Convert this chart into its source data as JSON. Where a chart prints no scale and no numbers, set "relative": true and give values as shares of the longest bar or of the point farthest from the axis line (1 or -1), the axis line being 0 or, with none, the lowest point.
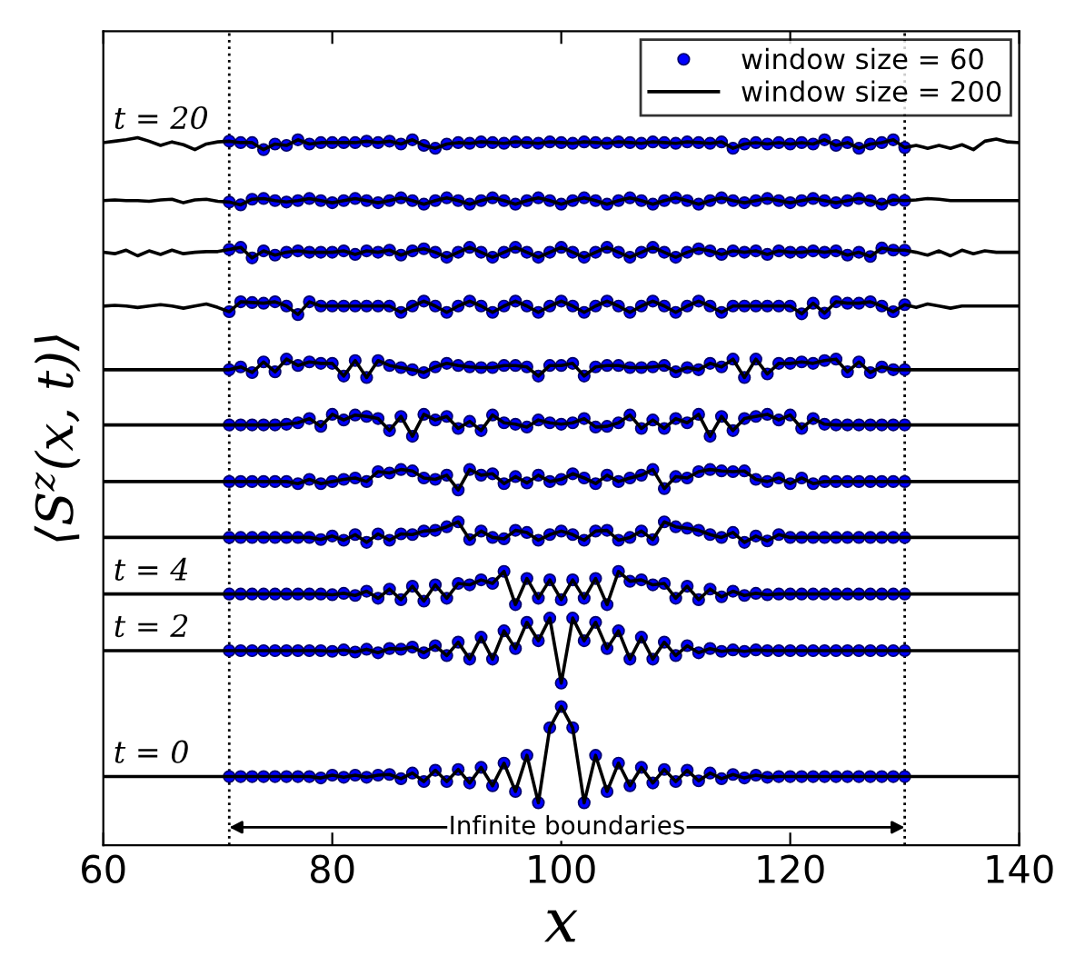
{
  "chart_data": {
    "type": "line",
    "xlabel": "x",
    "ylabel": "⟨S$^{z}$(x, t)⟩",
    "relative": true,
    "tick_labels": "x",
    "legend": "top right",
    "xlim": [
      60,
      140
    ],
    "xticks": [
      60,
      80,
      100,
      120,
      140
    ],
    "x": [
      60,
      61,
      62,
      63,
      64,
      65,
      66,
      67,
      68,
      69,
      70,
      71,
      72,
      73,
      74,
      75,
      76,
      77,
      78,
      79,
      80,
      81,
      82,
      83,
      84,
      85,
      86,
      87,
      88,
      89,
      90,
      91,
      92,
      93,
      94,
      95,
      96,
      97,
      98,
      99,
      100,
      101,
      102,
      103,
      104,
      105,
      106,
      107,
      108,
      109,
      110,
      111,
      112,
      113,
      114,
      115,
      116,
      117,
      118,
      119,
      120,
      121,
      122,
      123,
      124,
      125,
      126,
      127,
      128,
      129,
      130,
      131,
      132,
      133,
      134,
      135,
      136,
      137,
      138,
      139,
      140
    ],
    "series": [
      {
        "color": "#000000",
        "line_style": "solid",
        "values": [
          0.097,
          0.097,
          0.097,
          0.097,
          0.097,
          0.097,
          0.097,
          0.097,
          0.097,
          0.097,
          0.097,
          0.097,
          0.097,
          0.097,
          0.097,
          0.097,
          0.097,
          0.097,
          0.097,
          0.095,
          0.099,
          0.096,
          0.099,
          0.096,
          0.099,
          0.1,
          0.094,
          0.102,
          0.09,
          0.106,
          0.09,
          0.107,
          0.088,
          0.11,
          0.084,
          0.116,
          0.076,
          0.127,
          0.06,
          0.166,
          0.196,
          0.166,
          0.06,
          0.127,
          0.076,
          0.116,
          0.084,
          0.11,
          0.088,
          0.107,
          0.09,
          0.106,
          0.091,
          0.102,
          0.094,
          0.1,
          0.095,
          0.099,
          0.096,
          0.097,
          0.097,
          0.097,
          0.097,
          0.097,
          0.097,
          0.097,
          0.097,
          0.097,
          0.097,
          0.097,
          0.097,
          0.097,
          0.097,
          0.097,
          0.097,
          0.097,
          0.097,
          0.097,
          0.097,
          0.097,
          0.097
        ]
      },
      {
        "name": "window size = 60",
        "type": "scatter",
        "color": "#0000ff",
        "marker": "circle",
        "values": [
          null,
          null,
          null,
          null,
          null,
          null,
          null,
          null,
          null,
          null,
          null,
          0.097,
          0.097,
          0.097,
          0.097,
          0.097,
          0.097,
          0.097,
          0.097,
          0.095,
          0.099,
          0.096,
          0.099,
          0.096,
          0.099,
          0.1,
          0.094,
          0.102,
          0.09,
          0.106,
          0.09,
          0.107,
          0.088,
          0.11,
          0.084,
          0.116,
          0.076,
          0.127,
          0.06,
          0.166,
          0.196,
          0.166,
          0.06,
          0.127,
          0.076,
          0.116,
          0.084,
          0.11,
          0.088,
          0.107,
          0.09,
          0.106,
          0.091,
          0.102,
          0.094,
          0.1,
          0.095,
          0.099,
          0.096,
          0.097,
          0.097,
          0.097,
          0.097,
          0.097,
          0.097,
          0.097,
          0.097,
          0.097,
          0.097,
          0.097,
          0.097,
          null,
          null,
          null,
          null,
          null,
          null,
          null,
          null,
          null,
          null
        ]
      },
      {
        "name": "window size = 200",
        "color": "#000000",
        "line_style": "solid",
        "values": [
          0.275,
          0.275,
          0.275,
          0.275,
          0.275,
          0.275,
          0.275,
          0.275,
          0.275,
          0.275,
          0.275,
          0.275,
          0.275,
          0.275,
          0.275,
          0.275,
          0.275,
          0.275,
          0.275,
          0.275,
          0.274,
          0.276,
          0.273,
          0.277,
          0.272,
          0.278,
          0.277,
          0.28,
          0.272,
          0.282,
          0.268,
          0.287,
          0.263,
          0.294,
          0.263,
          0.303,
          0.278,
          0.315,
          0.289,
          0.321,
          0.229,
          0.321,
          0.289,
          0.315,
          0.278,
          0.303,
          0.263,
          0.294,
          0.263,
          0.287,
          0.268,
          0.282,
          0.272,
          0.278,
          0.274,
          0.276,
          0.274,
          0.276,
          0.275,
          0.275,
          0.275,
          0.275,
          0.275,
          0.275,
          0.275,
          0.275,
          0.275,
          0.275,
          0.275,
          0.275,
          0.275,
          0.275,
          0.275,
          0.275,
          0.275,
          0.275,
          0.275,
          0.275,
          0.275,
          0.275,
          0.275
        ]
      },
      {
        "type": "scatter",
        "color": "#0000ff",
        "marker": "circle",
        "values": [
          null,
          null,
          null,
          null,
          null,
          null,
          null,
          null,
          null,
          null,
          null,
          0.275,
          0.275,
          0.275,
          0.275,
          0.275,
          0.275,
          0.275,
          0.275,
          0.275,
          0.274,
          0.276,
          0.273,
          0.277,
          0.272,
          0.278,
          0.277,
          0.28,
          0.272,
          0.282,
          0.268,
          0.287,
          0.263,
          0.294,
          0.263,
          0.303,
          0.278,
          0.315,
          0.289,
          0.321,
          0.229,
          0.321,
          0.289,
          0.315,
          0.278,
          0.303,
          0.263,
          0.294,
          0.263,
          0.287,
          0.268,
          0.282,
          0.272,
          0.278,
          0.274,
          0.276,
          0.274,
          0.276,
          0.275,
          0.275,
          0.275,
          0.275,
          0.275,
          0.275,
          0.275,
          0.275,
          0.275,
          0.275,
          0.275,
          0.275,
          0.275,
          null,
          null,
          null,
          null,
          null,
          null,
          null,
          null,
          null,
          null
        ]
      },
      {
        "color": "#000000",
        "line_style": "solid",
        "values": [
          0.355,
          0.355,
          0.355,
          0.355,
          0.355,
          0.355,
          0.355,
          0.355,
          0.355,
          0.355,
          0.355,
          0.355,
          0.355,
          0.355,
          0.355,
          0.355,
          0.355,
          0.355,
          0.355,
          0.355,
          0.354,
          0.356,
          0.353,
          0.359,
          0.349,
          0.362,
          0.347,
          0.366,
          0.345,
          0.368,
          0.349,
          0.37,
          0.368,
          0.375,
          0.37,
          0.387,
          0.34,
          0.377,
          0.349,
          0.375,
          0.347,
          0.375,
          0.349,
          0.377,
          0.34,
          0.387,
          0.373,
          0.375,
          0.368,
          0.37,
          0.349,
          0.366,
          0.347,
          0.362,
          0.351,
          0.359,
          0.353,
          0.356,
          0.354,
          0.355,
          0.355,
          0.355,
          0.355,
          0.355,
          0.355,
          0.355,
          0.355,
          0.355,
          0.355,
          0.355,
          0.355,
          0.355,
          0.355,
          0.355,
          0.355,
          0.355,
          0.355,
          0.355,
          0.355,
          0.355,
          0.355
        ]
      },
      {
        "type": "scatter",
        "color": "#0000ff",
        "marker": "circle",
        "values": [
          null,
          null,
          null,
          null,
          null,
          null,
          null,
          null,
          null,
          null,
          null,
          0.355,
          0.355,
          0.355,
          0.355,
          0.355,
          0.355,
          0.355,
          0.355,
          0.355,
          0.354,
          0.356,
          0.353,
          0.359,
          0.349,
          0.362,
          0.347,
          0.366,
          0.345,
          0.368,
          0.349,
          0.37,
          0.368,
          0.375,
          0.37,
          0.387,
          0.34,
          0.377,
          0.349,
          0.375,
          0.347,
          0.375,
          0.349,
          0.377,
          0.34,
          0.387,
          0.373,
          0.375,
          0.368,
          0.37,
          0.349,
          0.366,
          0.347,
          0.362,
          0.351,
          0.359,
          0.353,
          0.356,
          0.354,
          0.355,
          0.355,
          0.355,
          0.355,
          0.355,
          0.355,
          0.355,
          0.355,
          0.355,
          0.355,
          0.355,
          0.355,
          null,
          null,
          null,
          null,
          null,
          null,
          null,
          null,
          null,
          null
        ]
      },
      {
        "color": "#000000",
        "line_style": "solid",
        "values": [
          0.435,
          0.435,
          0.435,
          0.435,
          0.435,
          0.435,
          0.435,
          0.435,
          0.435,
          0.435,
          0.435,
          0.435,
          0.435,
          0.435,
          0.435,
          0.435,
          0.435,
          0.435,
          0.435,
          0.432,
          0.437,
          0.431,
          0.439,
          0.428,
          0.44,
          0.431,
          0.44,
          0.439,
          0.444,
          0.445,
          0.45,
          0.457,
          0.432,
          0.444,
          0.435,
          0.433,
          0.445,
          0.442,
          0.431,
          0.439,
          0.444,
          0.439,
          0.431,
          0.444,
          0.445,
          0.431,
          0.435,
          0.444,
          0.432,
          0.457,
          0.45,
          0.448,
          0.445,
          0.439,
          0.435,
          0.442,
          0.428,
          0.437,
          0.43,
          0.439,
          0.435,
          0.435,
          0.435,
          0.435,
          0.435,
          0.435,
          0.435,
          0.435,
          0.435,
          0.435,
          0.435,
          0.435,
          0.435,
          0.435,
          0.435,
          0.435,
          0.435,
          0.435,
          0.435,
          0.435,
          0.435
        ]
      },
      {
        "type": "scatter",
        "color": "#0000ff",
        "marker": "circle",
        "values": [
          null,
          null,
          null,
          null,
          null,
          null,
          null,
          null,
          null,
          null,
          null,
          0.435,
          0.435,
          0.435,
          0.435,
          0.435,
          0.435,
          0.435,
          0.435,
          0.432,
          0.437,
          0.431,
          0.439,
          0.428,
          0.44,
          0.431,
          0.44,
          0.439,
          0.444,
          0.445,
          0.45,
          0.457,
          0.432,
          0.444,
          0.435,
          0.433,
          0.445,
          0.442,
          0.431,
          0.439,
          0.444,
          0.439,
          0.431,
          0.444,
          0.445,
          0.431,
          0.435,
          0.444,
          0.432,
          0.457,
          0.45,
          0.448,
          0.445,
          0.439,
          0.435,
          0.442,
          0.428,
          0.437,
          0.43,
          0.439,
          0.435,
          0.435,
          0.435,
          0.435,
          0.435,
          0.435,
          0.435,
          0.435,
          0.435,
          0.435,
          0.435,
          null,
          null,
          null,
          null,
          null,
          null,
          null,
          null,
          null,
          null
        ]
      },
      {
        "color": "#000000",
        "line_style": "solid",
        "values": [
          0.514,
          0.514,
          0.514,
          0.514,
          0.514,
          0.514,
          0.514,
          0.514,
          0.514,
          0.514,
          0.514,
          0.514,
          0.514,
          0.514,
          0.514,
          0.514,
          0.514,
          0.511,
          0.517,
          0.511,
          0.514,
          0.517,
          0.519,
          0.514,
          0.528,
          0.526,
          0.531,
          0.529,
          0.519,
          0.517,
          0.523,
          0.502,
          0.531,
          0.523,
          0.525,
          0.511,
          0.521,
          0.512,
          0.523,
          0.514,
          0.517,
          0.525,
          0.519,
          0.511,
          0.523,
          0.514,
          0.519,
          0.523,
          0.531,
          0.504,
          0.521,
          0.519,
          0.528,
          0.531,
          0.529,
          0.528,
          0.529,
          0.517,
          0.514,
          0.519,
          0.511,
          0.519,
          0.511,
          0.514,
          0.514,
          0.514,
          0.514,
          0.514,
          0.514,
          0.514,
          0.514,
          0.514,
          0.514,
          0.514,
          0.514,
          0.514,
          0.514,
          0.514,
          0.514,
          0.514,
          0.514
        ]
      },
      {
        "type": "scatter",
        "color": "#0000ff",
        "marker": "circle",
        "values": [
          null,
          null,
          null,
          null,
          null,
          null,
          null,
          null,
          null,
          null,
          null,
          0.514,
          0.514,
          0.514,
          0.514,
          0.514,
          0.514,
          0.511,
          0.517,
          0.511,
          0.514,
          0.517,
          0.519,
          0.514,
          0.528,
          0.526,
          0.531,
          0.529,
          0.519,
          0.517,
          0.523,
          0.502,
          0.531,
          0.523,
          0.525,
          0.511,
          0.521,
          0.512,
          0.523,
          0.514,
          0.517,
          0.525,
          0.519,
          0.511,
          0.523,
          0.514,
          0.519,
          0.523,
          0.531,
          0.504,
          0.521,
          0.519,
          0.528,
          0.531,
          0.529,
          0.528,
          0.529,
          0.517,
          0.514,
          0.519,
          0.511,
          0.519,
          0.511,
          0.514,
          0.514,
          0.514,
          0.514,
          0.514,
          0.514,
          0.514,
          0.514,
          null,
          null,
          null,
          null,
          null,
          null,
          null,
          null,
          null,
          null
        ]
      },
      {
        "color": "#000000",
        "line_style": "solid",
        "values": [
          0.594,
          0.594,
          0.594,
          0.594,
          0.594,
          0.594,
          0.594,
          0.594,
          0.594,
          0.594,
          0.594,
          0.594,
          0.594,
          0.594,
          0.594,
          0.594,
          0.595,
          0.597,
          0.603,
          0.592,
          0.609,
          0.601,
          0.608,
          0.606,
          0.603,
          0.586,
          0.606,
          0.578,
          0.609,
          0.601,
          0.606,
          0.589,
          0.599,
          0.586,
          0.608,
          0.597,
          0.595,
          0.591,
          0.601,
          0.597,
          0.595,
          0.597,
          0.603,
          0.591,
          0.592,
          0.597,
          0.608,
          0.589,
          0.601,
          0.589,
          0.603,
          0.597,
          0.609,
          0.578,
          0.606,
          0.586,
          0.603,
          0.606,
          0.609,
          0.601,
          0.608,
          0.589,
          0.603,
          0.595,
          0.594,
          0.594,
          0.594,
          0.594,
          0.594,
          0.594,
          0.594,
          0.594,
          0.594,
          0.594,
          0.594,
          0.594,
          0.594,
          0.594,
          0.594,
          0.594,
          0.594
        ]
      },
      {
        "type": "scatter",
        "color": "#0000ff",
        "marker": "circle",
        "values": [
          null,
          null,
          null,
          null,
          null,
          null,
          null,
          null,
          null,
          null,
          null,
          0.594,
          0.594,
          0.594,
          0.594,
          0.594,
          0.595,
          0.597,
          0.603,
          0.592,
          0.609,
          0.601,
          0.608,
          0.606,
          0.603,
          0.586,
          0.606,
          0.578,
          0.609,
          0.601,
          0.606,
          0.589,
          0.599,
          0.586,
          0.608,
          0.597,
          0.595,
          0.591,
          0.601,
          0.597,
          0.595,
          0.597,
          0.603,
          0.591,
          0.592,
          0.597,
          0.608,
          0.589,
          0.601,
          0.589,
          0.603,
          0.597,
          0.609,
          0.578,
          0.606,
          0.586,
          0.603,
          0.606,
          0.609,
          0.601,
          0.608,
          0.589,
          0.603,
          0.595,
          0.594,
          0.594,
          0.594,
          0.594,
          0.594,
          0.594,
          0.594,
          null,
          null,
          null,
          null,
          null,
          null,
          null,
          null,
          null,
          null
        ]
      },
      {
        "color": "#000000",
        "line_style": "solid",
        "values": [
          0.672,
          0.672,
          0.672,
          0.672,
          0.672,
          0.672,
          0.672,
          0.672,
          0.672,
          0.672,
          0.672,
          0.672,
          0.676,
          0.668,
          0.683,
          0.669,
          0.687,
          0.678,
          0.683,
          0.681,
          0.681,
          0.663,
          0.685,
          0.661,
          0.685,
          0.678,
          0.675,
          0.672,
          0.668,
          0.676,
          0.681,
          0.678,
          0.676,
          0.675,
          0.675,
          0.678,
          0.678,
          0.676,
          0.663,
          0.678,
          0.678,
          0.681,
          0.663,
          0.676,
          0.678,
          0.678,
          0.675,
          0.675,
          0.676,
          0.678,
          0.669,
          0.675,
          0.672,
          0.681,
          0.676,
          0.687,
          0.661,
          0.687,
          0.666,
          0.681,
          0.681,
          0.683,
          0.681,
          0.685,
          0.687,
          0.669,
          0.683,
          0.668,
          0.676,
          0.672,
          0.672,
          0.672,
          0.672,
          0.672,
          0.672,
          0.672,
          0.672,
          0.672,
          0.672,
          0.672,
          0.672
        ]
      },
      {
        "type": "scatter",
        "color": "#0000ff",
        "marker": "circle",
        "values": [
          null,
          null,
          null,
          null,
          null,
          null,
          null,
          null,
          null,
          null,
          null,
          0.672,
          0.676,
          0.668,
          0.683,
          0.669,
          0.687,
          0.678,
          0.683,
          0.681,
          0.681,
          0.663,
          0.685,
          0.661,
          0.685,
          0.678,
          0.675,
          0.672,
          0.668,
          0.676,
          0.681,
          0.678,
          0.676,
          0.675,
          0.675,
          0.678,
          0.678,
          0.676,
          0.663,
          0.678,
          0.678,
          0.681,
          0.663,
          0.676,
          0.678,
          0.678,
          0.675,
          0.675,
          0.676,
          0.678,
          0.669,
          0.675,
          0.672,
          0.681,
          0.676,
          0.687,
          0.661,
          0.687,
          0.666,
          0.681,
          0.681,
          0.683,
          0.681,
          0.685,
          0.687,
          0.669,
          0.683,
          0.668,
          0.676,
          0.672,
          0.672,
          null,
          null,
          null,
          null,
          null,
          null,
          null,
          null,
          null,
          null
        ]
      },
      {
        "color": "#000000",
        "line_style": "solid",
        "values": [
          0.762,
          0.763,
          0.762,
          0.76,
          0.762,
          0.764,
          0.762,
          0.759,
          0.762,
          0.765,
          0.76,
          0.754,
          0.768,
          0.767,
          0.766,
          0.768,
          0.762,
          0.75,
          0.768,
          0.762,
          0.762,
          0.762,
          0.762,
          0.762,
          0.762,
          0.762,
          0.753,
          0.762,
          0.769,
          0.762,
          0.753,
          0.762,
          0.769,
          0.762,
          0.753,
          0.762,
          0.769,
          0.762,
          0.753,
          0.762,
          0.769,
          0.762,
          0.753,
          0.762,
          0.769,
          0.762,
          0.753,
          0.762,
          0.769,
          0.762,
          0.753,
          0.762,
          0.769,
          0.762,
          0.753,
          0.762,
          0.762,
          0.762,
          0.762,
          0.762,
          0.762,
          0.751,
          0.766,
          0.752,
          0.768,
          0.766,
          0.766,
          0.768,
          0.762,
          0.754,
          0.764,
          0.76,
          0.765,
          0.762,
          0.759,
          0.762,
          0.762,
          0.762,
          0.762,
          0.762,
          0.762
        ]
      },
      {
        "type": "scatter",
        "color": "#0000ff",
        "marker": "circle",
        "values": [
          null,
          null,
          null,
          null,
          null,
          null,
          null,
          null,
          null,
          null,
          null,
          0.754,
          0.768,
          0.767,
          0.766,
          0.768,
          0.762,
          0.75,
          0.768,
          0.762,
          0.762,
          0.762,
          0.762,
          0.762,
          0.762,
          0.762,
          0.753,
          0.762,
          0.769,
          0.762,
          0.753,
          0.762,
          0.769,
          0.762,
          0.753,
          0.762,
          0.769,
          0.762,
          0.753,
          0.762,
          0.769,
          0.762,
          0.753,
          0.762,
          0.769,
          0.762,
          0.753,
          0.762,
          0.769,
          0.762,
          0.753,
          0.762,
          0.769,
          0.762,
          0.753,
          0.762,
          0.762,
          0.762,
          0.762,
          0.762,
          0.762,
          0.751,
          0.766,
          0.752,
          0.768,
          0.766,
          0.766,
          0.768,
          0.762,
          0.754,
          0.764,
          null,
          null,
          null,
          null,
          null,
          null,
          null,
          null,
          null,
          null
        ]
      },
      {
        "color": "#000000",
        "line_style": "solid",
        "values": [
          0.838,
          0.836,
          0.841,
          0.833,
          0.84,
          0.835,
          0.841,
          0.836,
          0.838,
          0.839,
          0.839,
          0.842,
          0.845,
          0.83,
          0.84,
          0.834,
          0.838,
          0.84,
          0.838,
          0.838,
          0.838,
          0.84,
          0.835,
          0.84,
          0.838,
          0.841,
          0.834,
          0.84,
          0.843,
          0.838,
          0.831,
          0.838,
          0.845,
          0.838,
          0.831,
          0.838,
          0.845,
          0.838,
          0.831,
          0.838,
          0.845,
          0.838,
          0.831,
          0.838,
          0.845,
          0.838,
          0.831,
          0.838,
          0.845,
          0.838,
          0.831,
          0.838,
          0.843,
          0.84,
          0.835,
          0.84,
          0.838,
          0.84,
          0.835,
          0.84,
          0.838,
          0.838,
          0.84,
          0.838,
          0.84,
          0.834,
          0.838,
          0.832,
          0.844,
          0.841,
          0.841,
          0.838,
          0.834,
          0.84,
          0.833,
          0.841,
          0.836,
          0.84,
          0.838,
          0.838,
          0.838
        ]
      },
      {
        "type": "scatter",
        "color": "#0000ff",
        "marker": "circle",
        "values": [
          null,
          null,
          null,
          null,
          null,
          null,
          null,
          null,
          null,
          null,
          null,
          0.842,
          0.845,
          0.83,
          0.84,
          0.834,
          0.838,
          0.84,
          0.838,
          0.838,
          0.838,
          0.84,
          0.835,
          0.84,
          0.838,
          0.841,
          0.834,
          0.84,
          0.843,
          0.838,
          0.831,
          0.838,
          0.845,
          0.838,
          0.831,
          0.838,
          0.845,
          0.838,
          0.831,
          0.838,
          0.845,
          0.838,
          0.831,
          0.838,
          0.845,
          0.838,
          0.831,
          0.838,
          0.845,
          0.838,
          0.831,
          0.838,
          0.843,
          0.84,
          0.835,
          0.84,
          0.838,
          0.84,
          0.835,
          0.84,
          0.838,
          0.838,
          0.84,
          0.838,
          0.84,
          0.834,
          0.838,
          0.832,
          0.844,
          0.841,
          0.841,
          null,
          null,
          null,
          null,
          null,
          null,
          null,
          null,
          null,
          null
        ]
      },
      {
        "color": "#000000",
        "line_style": "solid",
        "values": [
          0.911,
          0.912,
          0.911,
          0.911,
          0.91,
          0.912,
          0.913,
          0.908,
          0.912,
          0.913,
          0.91,
          0.909,
          0.905,
          0.913,
          0.914,
          0.911,
          0.909,
          0.911,
          0.914,
          0.911,
          0.908,
          0.911,
          0.914,
          0.911,
          0.908,
          0.911,
          0.915,
          0.911,
          0.906,
          0.911,
          0.915,
          0.911,
          0.906,
          0.911,
          0.915,
          0.911,
          0.906,
          0.911,
          0.915,
          0.911,
          0.906,
          0.911,
          0.915,
          0.911,
          0.906,
          0.911,
          0.915,
          0.911,
          0.906,
          0.911,
          0.915,
          0.911,
          0.906,
          0.911,
          0.915,
          0.911,
          0.908,
          0.911,
          0.914,
          0.911,
          0.908,
          0.911,
          0.914,
          0.911,
          0.908,
          0.911,
          0.914,
          0.911,
          0.906,
          0.912,
          0.911,
          0.912,
          0.914,
          0.913,
          0.911,
          0.911,
          0.911,
          0.911,
          0.911,
          0.911,
          0.911
        ]
      },
      {
        "type": "scatter",
        "color": "#0000ff",
        "marker": "circle",
        "values": [
          null,
          null,
          null,
          null,
          null,
          null,
          null,
          null,
          null,
          null,
          null,
          0.909,
          0.905,
          0.913,
          0.914,
          0.911,
          0.909,
          0.911,
          0.914,
          0.911,
          0.908,
          0.911,
          0.914,
          0.911,
          0.908,
          0.911,
          0.915,
          0.911,
          0.906,
          0.911,
          0.915,
          0.911,
          0.906,
          0.911,
          0.915,
          0.911,
          0.906,
          0.911,
          0.915,
          0.911,
          0.906,
          0.911,
          0.915,
          0.911,
          0.906,
          0.911,
          0.915,
          0.911,
          0.906,
          0.911,
          0.915,
          0.911,
          0.906,
          0.911,
          0.915,
          0.911,
          0.908,
          0.911,
          0.914,
          0.911,
          0.908,
          0.911,
          0.914,
          0.911,
          0.908,
          0.911,
          0.914,
          0.911,
          0.906,
          0.912,
          0.911,
          null,
          null,
          null,
          null,
          null,
          null,
          null,
          null,
          null,
          null
        ]
      },
      {
        "color": "#000000",
        "line_style": "solid",
        "values": [
          0.993,
          0.995,
          0.997,
          1.0,
          0.995,
          0.989,
          0.994,
          0.99,
          0.983,
          0.991,
          0.994,
          0.995,
          0.993,
          0.993,
          0.983,
          0.991,
          0.989,
          0.997,
          0.991,
          0.993,
          0.993,
          0.993,
          0.993,
          0.995,
          0.993,
          0.995,
          0.991,
          0.997,
          0.989,
          0.985,
          0.991,
          0.993,
          0.992,
          0.994,
          0.993,
          0.992,
          0.994,
          0.993,
          0.992,
          0.994,
          0.993,
          0.992,
          0.994,
          0.993,
          0.992,
          0.994,
          0.993,
          0.992,
          0.994,
          0.993,
          0.992,
          0.994,
          0.993,
          0.992,
          0.994,
          0.985,
          0.991,
          0.993,
          0.991,
          0.993,
          0.991,
          0.993,
          0.991,
          0.997,
          0.989,
          0.993,
          0.985,
          0.991,
          0.993,
          0.997,
          0.986,
          0.989,
          0.985,
          0.989,
          0.985,
          0.99,
          0.983,
          0.995,
          0.998,
          0.994,
          0.993
        ]
      },
      {
        "type": "scatter",
        "color": "#0000ff",
        "marker": "circle",
        "values": [
          null,
          null,
          null,
          null,
          null,
          null,
          null,
          null,
          null,
          null,
          null,
          0.995,
          0.993,
          0.993,
          0.983,
          0.991,
          0.989,
          0.997,
          0.991,
          0.993,
          0.993,
          0.993,
          0.993,
          0.995,
          0.993,
          0.995,
          0.991,
          0.997,
          0.989,
          0.985,
          0.991,
          0.993,
          0.992,
          0.994,
          0.993,
          0.992,
          0.994,
          0.993,
          0.992,
          0.994,
          0.993,
          0.992,
          0.994,
          0.993,
          0.992,
          0.994,
          0.993,
          0.992,
          0.994,
          0.993,
          0.992,
          0.994,
          0.993,
          0.992,
          0.994,
          0.985,
          0.991,
          0.993,
          0.991,
          0.993,
          0.991,
          0.993,
          0.991,
          0.997,
          0.989,
          0.993,
          0.985,
          0.991,
          0.993,
          0.997,
          0.986,
          null,
          null,
          null,
          null,
          null,
          null,
          null,
          null,
          null,
          null
        ]
      }
    ],
    "ref_lines": [
      {
        "axis": "x",
        "value": 71,
        "color": "#000000",
        "line_style": "dotted"
      },
      {
        "axis": "x",
        "value": 130,
        "color": "#000000",
        "line_style": "dotted"
      }
    ],
    "annotations": [
      {
        "text": "t = 20",
        "y": 0.993
      },
      {
        "text": "t = 4",
        "y": 0.355
      },
      {
        "text": "t = 2",
        "y": 0.275
      },
      {
        "text": "t = 0",
        "y": 0.097
      },
      "Infinite boundaries"
    ]
  }
}
